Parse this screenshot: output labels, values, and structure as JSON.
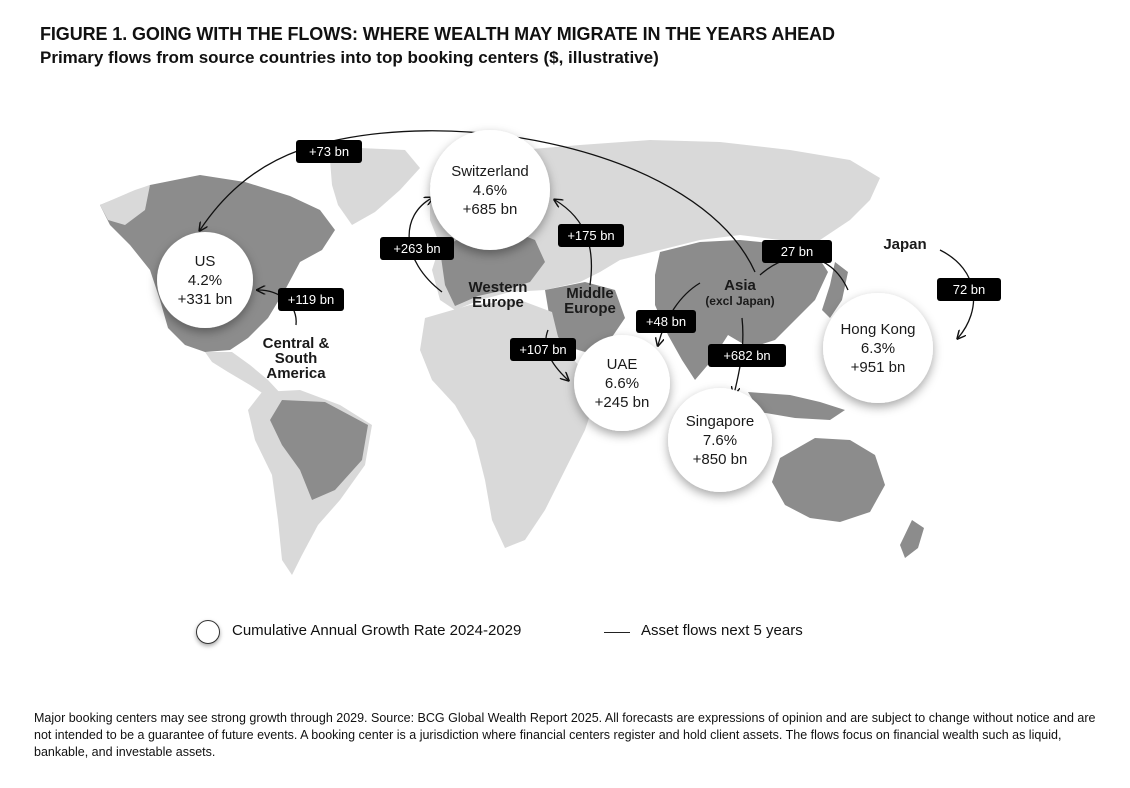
{
  "header": {
    "title": "FIGURE 1. GOING WITH THE FLOWS: WHERE WEALTH MAY MIGRATE IN THE YEARS AHEAD",
    "subtitle": "Primary flows from source countries into top booking centers ($, illustrative)"
  },
  "booking_centers": [
    {
      "name": "US",
      "cagr": "4.2%",
      "flow": "+331 bn"
    },
    {
      "name": "Switzerland",
      "cagr": "4.6%",
      "flow": "+685 bn"
    },
    {
      "name": "UAE",
      "cagr": "6.6%",
      "flow": "+245 bn"
    },
    {
      "name": "Singapore",
      "cagr": "7.6%",
      "flow": "+850 bn"
    },
    {
      "name": "Hong Kong",
      "cagr": "6.3%",
      "flow": "+951 bn"
    }
  ],
  "source_regions": [
    {
      "line1": "Central &",
      "line2": "South",
      "line3": "America"
    },
    {
      "line1": "Western",
      "line2": "Europe"
    },
    {
      "line1": "Middle",
      "line2": "Europe"
    },
    {
      "line1": "Asia",
      "line2": "(excl Japan)"
    },
    {
      "line1": "Japan"
    }
  ],
  "flows": [
    {
      "label": "+73 bn"
    },
    {
      "label": "+119 bn"
    },
    {
      "label": "+263 bn"
    },
    {
      "label": "+175 bn"
    },
    {
      "label": "+107 bn"
    },
    {
      "label": "+48 bn"
    },
    {
      "label": "+682 bn"
    },
    {
      "label": "27 bn"
    },
    {
      "label": "72 bn"
    }
  ],
  "legend": {
    "bubble_label": "Cumulative Annual Growth Rate 2024-2029",
    "line_label": "Asset flows next 5 years"
  },
  "footnote": "Major booking centers may see strong growth through 2029. Source: BCG Global Wealth Report 2025. All forecasts are expressions of opinion and are subject to change without notice and are not intended to be a guarantee of future events. A booking center is a jurisdiction where financial centers register and hold client assets. The flows focus on financial wealth such as liquid, bankable, and investable assets.",
  "colors": {
    "land_light": "#d9d9d9",
    "land_dark": "#8c8c8c",
    "label_bg": "#000000",
    "bubble": "#ffffff"
  }
}
